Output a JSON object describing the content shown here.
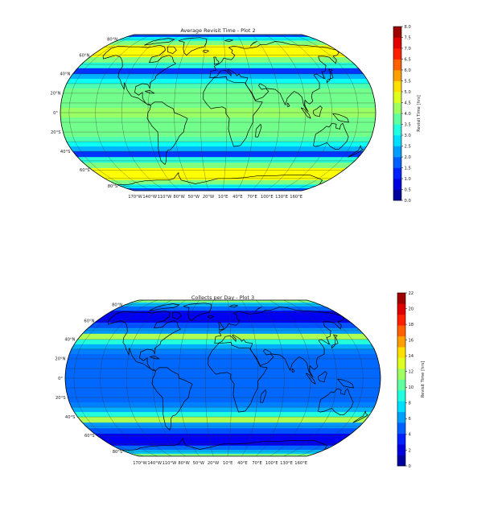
{
  "chart_data": [
    {
      "type": "heatmap",
      "title": "Average Revisit Time - Plot 2",
      "projection": "robinson",
      "colormap": "jet",
      "colorbar": {
        "label": "Revisit Time [hrs]",
        "min": 0,
        "max": 8,
        "ticks": [
          "0.0",
          "0.5",
          "1.0",
          "1.5",
          "2.0",
          "2.5",
          "3.0",
          "3.5",
          "4.0",
          "4.5",
          "5.0",
          "5.5",
          "6.0",
          "6.5",
          "7.0",
          "7.5",
          "8.0"
        ]
      },
      "lat_labels": [
        "80°N",
        "60°N",
        "40°N",
        "20°N",
        "0°",
        "20°S",
        "40°S",
        "60°S",
        "80°S"
      ],
      "lon_labels": [
        "170°W",
        "140°W",
        "110°W",
        "80°W",
        "50°W",
        "20°W",
        "10°E",
        "40°E",
        "70°E",
        "100°E",
        "130°E",
        "160°E"
      ],
      "bands": [
        {
          "lat": [
            90,
            84
          ],
          "value": 1.6
        },
        {
          "lat": [
            84,
            78
          ],
          "value": 3.0
        },
        {
          "lat": [
            78,
            72
          ],
          "value": 4.0
        },
        {
          "lat": [
            72,
            58
          ],
          "value": 5.0
        },
        {
          "lat": [
            58,
            52
          ],
          "value": 4.0
        },
        {
          "lat": [
            52,
            46
          ],
          "value": 3.3
        },
        {
          "lat": [
            46,
            40
          ],
          "value": 1.4
        },
        {
          "lat": [
            40,
            35
          ],
          "value": 2.4
        },
        {
          "lat": [
            35,
            30
          ],
          "value": 3.1
        },
        {
          "lat": [
            30,
            25
          ],
          "value": 3.6
        },
        {
          "lat": [
            25,
            5
          ],
          "value": 3.9
        },
        {
          "lat": [
            5,
            -5
          ],
          "value": 4.2
        },
        {
          "lat": [
            -5,
            -25
          ],
          "value": 3.9
        },
        {
          "lat": [
            -25,
            -30
          ],
          "value": 3.6
        },
        {
          "lat": [
            -30,
            -35
          ],
          "value": 3.1
        },
        {
          "lat": [
            -35,
            -40
          ],
          "value": 2.4
        },
        {
          "lat": [
            -40,
            -46
          ],
          "value": 1.4
        },
        {
          "lat": [
            -46,
            -52
          ],
          "value": 3.3
        },
        {
          "lat": [
            -52,
            -58
          ],
          "value": 4.0
        },
        {
          "lat": [
            -58,
            -72
          ],
          "value": 5.0
        },
        {
          "lat": [
            -72,
            -78
          ],
          "value": 4.0
        },
        {
          "lat": [
            -78,
            -84
          ],
          "value": 3.0
        },
        {
          "lat": [
            -84,
            -90
          ],
          "value": 1.6
        }
      ]
    },
    {
      "type": "heatmap",
      "title": "Collects per Day - Plot 3",
      "projection": "robinson",
      "colormap": "jet",
      "colorbar": {
        "label": "Revisit Time [hrs]",
        "min": 0,
        "max": 22,
        "ticks": [
          "0",
          "2",
          "4",
          "6",
          "8",
          "10",
          "12",
          "14",
          "16",
          "18",
          "20",
          "22"
        ]
      },
      "lat_labels": [
        "80°N",
        "60°N",
        "40°N",
        "20°N",
        "0°",
        "20°S",
        "40°S",
        "60°S",
        "80°S"
      ],
      "lon_labels": [
        "170°W",
        "140°W",
        "110°W",
        "80°W",
        "50°W",
        "20°W",
        "10°E",
        "40°E",
        "70°E",
        "100°E",
        "130°E",
        "160°E"
      ],
      "bands": [
        {
          "lat": [
            90,
            84
          ],
          "value": 11
        },
        {
          "lat": [
            84,
            78
          ],
          "value": 7
        },
        {
          "lat": [
            78,
            72
          ],
          "value": 5
        },
        {
          "lat": [
            72,
            58
          ],
          "value": 2.5
        },
        {
          "lat": [
            58,
            52
          ],
          "value": 4.5
        },
        {
          "lat": [
            52,
            46
          ],
          "value": 6
        },
        {
          "lat": [
            46,
            40
          ],
          "value": 12
        },
        {
          "lat": [
            40,
            35
          ],
          "value": 9
        },
        {
          "lat": [
            35,
            30
          ],
          "value": 6.5
        },
        {
          "lat": [
            30,
            25
          ],
          "value": 5.5
        },
        {
          "lat": [
            25,
            -25
          ],
          "value": 5
        },
        {
          "lat": [
            -25,
            -30
          ],
          "value": 5.5
        },
        {
          "lat": [
            -30,
            -35
          ],
          "value": 6.5
        },
        {
          "lat": [
            -35,
            -40
          ],
          "value": 9
        },
        {
          "lat": [
            -40,
            -46
          ],
          "value": 12
        },
        {
          "lat": [
            -46,
            -52
          ],
          "value": 6
        },
        {
          "lat": [
            -52,
            -58
          ],
          "value": 4.5
        },
        {
          "lat": [
            -58,
            -72
          ],
          "value": 2.5
        },
        {
          "lat": [
            -72,
            -78
          ],
          "value": 5
        },
        {
          "lat": [
            -78,
            -84
          ],
          "value": 7
        },
        {
          "lat": [
            -84,
            -90
          ],
          "value": 11
        }
      ]
    }
  ]
}
